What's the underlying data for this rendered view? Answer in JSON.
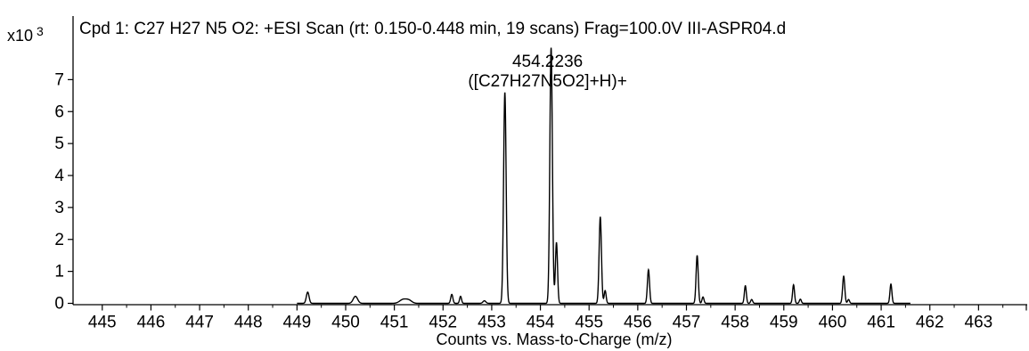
{
  "chart_data": {
    "type": "line",
    "title": "Cpd 1: C27 H27 N5 O2: +ESI Scan (rt: 0.150-0.448 min, 19 scans) Frag=100.0V III-ASPR04.d",
    "xlabel": "Counts vs. Mass-to-Charge (m/z)",
    "ylabel": "",
    "y_multiplier": {
      "base": "x10",
      "exponent": "3"
    },
    "xlim": [
      444.4,
      464.0
    ],
    "ylim": [
      0,
      8
    ],
    "x_ticks": [
      445,
      446,
      447,
      448,
      449,
      450,
      451,
      452,
      453,
      454,
      455,
      456,
      457,
      458,
      459,
      460,
      461,
      462,
      463
    ],
    "y_ticks": [
      0,
      1,
      2,
      3,
      4,
      5,
      6,
      7
    ],
    "grid": false,
    "legend": "none",
    "series": [
      {
        "color": "#000000",
        "baseline": 0.0,
        "peaks": [
          {
            "x": 449.22,
            "y": 0.35,
            "w": 0.028
          },
          {
            "x": 450.2,
            "y": 0.22,
            "w": 0.045
          },
          {
            "x": 451.18,
            "y": 0.12,
            "w": 0.07
          },
          {
            "x": 451.3,
            "y": 0.09,
            "w": 0.06
          },
          {
            "x": 452.18,
            "y": 0.28,
            "w": 0.022
          },
          {
            "x": 452.36,
            "y": 0.22,
            "w": 0.02
          },
          {
            "x": 452.85,
            "y": 0.08,
            "w": 0.03
          },
          {
            "x": 453.27,
            "y": 6.6,
            "w": 0.026
          },
          {
            "x": 454.22,
            "y": 8.0,
            "w": 0.026
          },
          {
            "x": 454.33,
            "y": 1.9,
            "w": 0.022
          },
          {
            "x": 455.23,
            "y": 2.7,
            "w": 0.024
          },
          {
            "x": 455.33,
            "y": 0.4,
            "w": 0.02
          },
          {
            "x": 456.22,
            "y": 1.05,
            "w": 0.022
          },
          {
            "x": 457.22,
            "y": 1.5,
            "w": 0.022
          },
          {
            "x": 457.34,
            "y": 0.2,
            "w": 0.02
          },
          {
            "x": 458.21,
            "y": 0.55,
            "w": 0.02
          },
          {
            "x": 458.34,
            "y": 0.12,
            "w": 0.02
          },
          {
            "x": 459.2,
            "y": 0.58,
            "w": 0.02
          },
          {
            "x": 459.34,
            "y": 0.13,
            "w": 0.02
          },
          {
            "x": 460.23,
            "y": 0.85,
            "w": 0.022
          },
          {
            "x": 460.33,
            "y": 0.12,
            "w": 0.02
          },
          {
            "x": 461.2,
            "y": 0.6,
            "w": 0.02
          }
        ]
      }
    ],
    "annotations": [
      {
        "x": 454.22,
        "y": 8.0,
        "lines": [
          "454.2236",
          "([C27H27N5O2]+H)+"
        ]
      }
    ]
  }
}
